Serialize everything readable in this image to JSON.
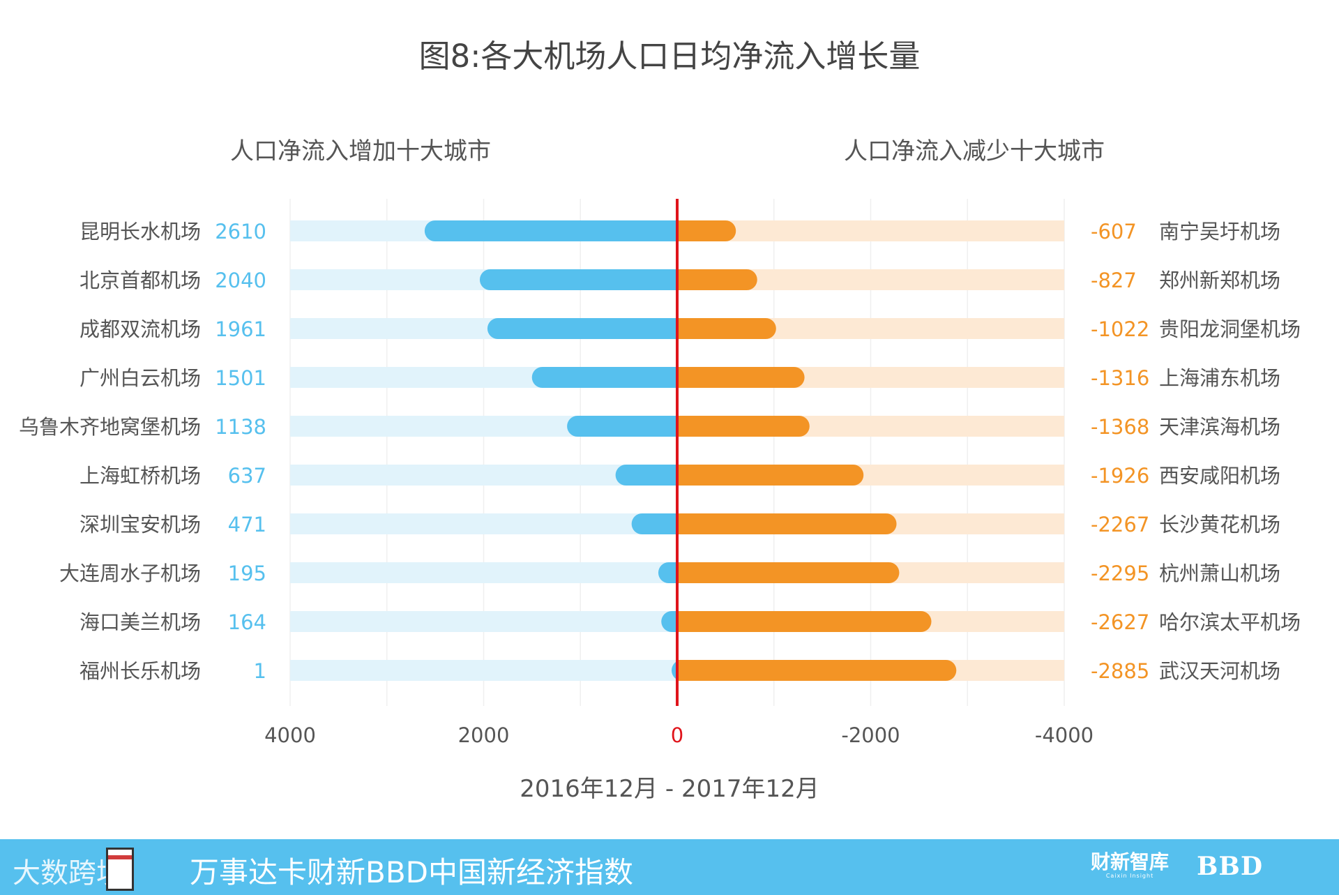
{
  "title": "图8:各大机场人口日均净流入增长量",
  "footer": {
    "left_brand": "大数跨境",
    "index_title": "万事达卡财新BBD中国新经济指数",
    "caixin_name": "财新智库",
    "caixin_en": "Caixin Insight",
    "bbd": "BBD"
  },
  "colors": {
    "increase_bar": "#56c0ee",
    "increase_track": "#e1f3fb",
    "decrease_bar": "#f39425",
    "decrease_track": "#fde9d4",
    "zero_line": "#e0141b",
    "increase_text": "#56c0ee",
    "decrease_text": "#f39425"
  },
  "chart_data": {
    "type": "bar",
    "orientation": "horizontal-diverging",
    "title": "图8:各大机场人口日均净流入增长量",
    "xlabel": "2016年12月 - 2017年12月",
    "left_heading": "人口净流入增加十大城市",
    "right_heading": "人口净流入减少十大城市",
    "xlim": [
      4000,
      -4000
    ],
    "ticks": [
      4000,
      2000,
      0,
      -2000,
      -4000
    ],
    "increase": {
      "categories": [
        "昆明长水机场",
        "北京首都机场",
        "成都双流机场",
        "广州白云机场",
        "乌鲁木齐地窝堡机场",
        "上海虹桥机场",
        "深圳宝安机场",
        "大连周水子机场",
        "海口美兰机场",
        "福州长乐机场"
      ],
      "values": [
        2610,
        2040,
        1961,
        1501,
        1138,
        637,
        471,
        195,
        164,
        1
      ]
    },
    "decrease": {
      "categories": [
        "南宁吴圩机场",
        "郑州新郑机场",
        "贵阳龙洞堡机场",
        "上海浦东机场",
        "天津滨海机场",
        "西安咸阳机场",
        "长沙黄花机场",
        "杭州萧山机场",
        "哈尔滨太平机场",
        "武汉天河机场"
      ],
      "values": [
        -607,
        -827,
        -1022,
        -1316,
        -1368,
        -1926,
        -2267,
        -2295,
        -2627,
        -2885
      ]
    }
  }
}
